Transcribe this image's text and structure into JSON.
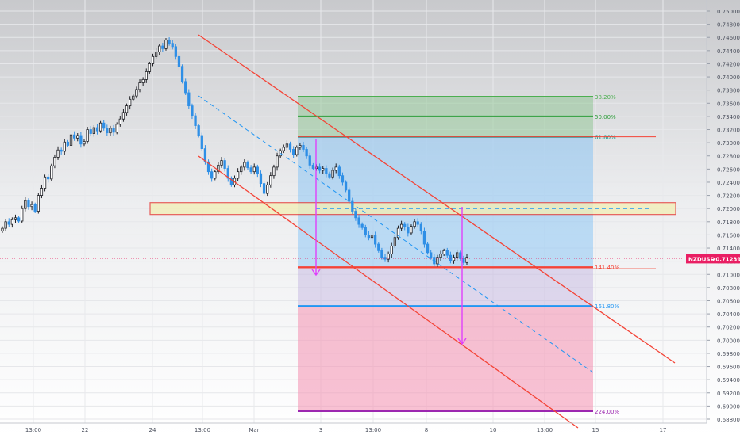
{
  "chart_data": {
    "type": "candlestick",
    "symbol": "NZDUSD",
    "last_price": "0.71239",
    "y_axis": {
      "ylim": [
        0.6875,
        0.751
      ],
      "ticks": [
        "0.75000",
        "0.74800",
        "0.74600",
        "0.74400",
        "0.74200",
        "0.74000",
        "0.73800",
        "0.73600",
        "0.73400",
        "0.73200",
        "0.73000",
        "0.72800",
        "0.72600",
        "0.72400",
        "0.72200",
        "0.72000",
        "0.71800",
        "0.71600",
        "0.71400",
        "0.71200",
        "0.71000",
        "0.70800",
        "0.70600",
        "0.70400",
        "0.70200",
        "0.70000",
        "0.69800",
        "0.69600",
        "0.69400",
        "0.69200",
        "0.69000",
        "0.68800"
      ]
    },
    "x_axis": {
      "ticks": [
        "13:00",
        "22",
        "24",
        "13:00",
        "Mar",
        "3",
        "13:00",
        "8",
        "10",
        "13:00",
        "15",
        "17"
      ]
    },
    "grid": true,
    "fib_levels": [
      {
        "label": "38.20%",
        "price": 0.737,
        "color": "#4caf50"
      },
      {
        "label": "50.00%",
        "price": 0.734,
        "color": "#2e9e3a"
      },
      {
        "label": "61.80%",
        "price": 0.7309,
        "color": "#009688"
      },
      {
        "label": "141.40%",
        "price": 0.7111,
        "color": "#f44336"
      },
      {
        "label": "161.80%",
        "price": 0.7052,
        "color": "#2196f3"
      },
      {
        "label": "224.00%",
        "price": 0.6892,
        "color": "#9c27b0"
      }
    ],
    "zone_price_range": [
      0.7191,
      0.7209
    ],
    "candle_closes": [
      0.717,
      0.718,
      0.7176,
      0.7183,
      0.7186,
      0.7181,
      0.72,
      0.7212,
      0.7203,
      0.7206,
      0.7196,
      0.722,
      0.7231,
      0.7248,
      0.7245,
      0.7265,
      0.7278,
      0.7289,
      0.7287,
      0.7301,
      0.7296,
      0.7312,
      0.7307,
      0.7311,
      0.7298,
      0.7302,
      0.732,
      0.7314,
      0.7323,
      0.7318,
      0.733,
      0.7322,
      0.7315,
      0.7322,
      0.7316,
      0.7328,
      0.7336,
      0.7346,
      0.7356,
      0.7366,
      0.7371,
      0.7381,
      0.7391,
      0.7396,
      0.7408,
      0.742,
      0.7431,
      0.7438,
      0.7447,
      0.7443,
      0.7456,
      0.7451,
      0.7446,
      0.7431,
      0.7416,
      0.7393,
      0.7376,
      0.7356,
      0.7341,
      0.7326,
      0.7311,
      0.7291,
      0.7271,
      0.7256,
      0.7246,
      0.7256,
      0.7266,
      0.7273,
      0.7261,
      0.7246,
      0.7236,
      0.7246,
      0.7256,
      0.7263,
      0.727,
      0.7262,
      0.7256,
      0.7263,
      0.7253,
      0.7238,
      0.7223,
      0.7236,
      0.725,
      0.7263,
      0.728,
      0.7288,
      0.7293,
      0.7298,
      0.729,
      0.7282,
      0.7293,
      0.7296,
      0.729,
      0.728,
      0.7266,
      0.7261,
      0.7263,
      0.7258,
      0.7261,
      0.7253,
      0.7248,
      0.7258,
      0.7263,
      0.725,
      0.724,
      0.7228,
      0.7211,
      0.7196,
      0.7186,
      0.7176,
      0.7171,
      0.716,
      0.7156,
      0.716,
      0.7146,
      0.7136,
      0.7126,
      0.7123,
      0.7131,
      0.7143,
      0.7156,
      0.717,
      0.7176,
      0.7172,
      0.7163,
      0.7173,
      0.718,
      0.7176,
      0.7166,
      0.7146,
      0.7133,
      0.7126,
      0.7116,
      0.7126,
      0.7131,
      0.7136,
      0.7129,
      0.7121,
      0.7126,
      0.7133,
      0.7124,
      0.7118,
      0.7126
    ]
  }
}
